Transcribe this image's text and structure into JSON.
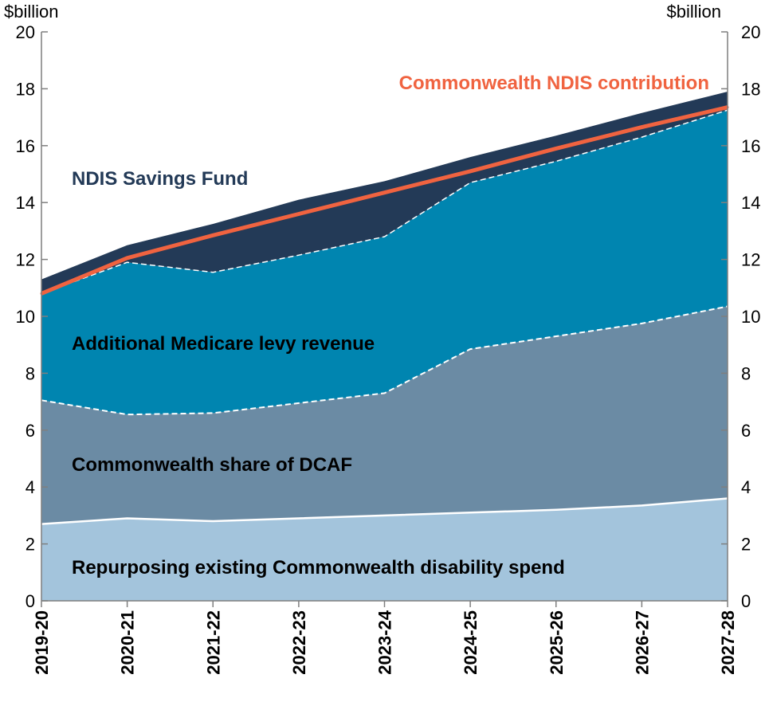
{
  "chart_data": {
    "type": "area",
    "y_unit_left": "$billion",
    "y_unit_right": "$billion",
    "categories": [
      "2019-20",
      "2020-21",
      "2021-22",
      "2022-23",
      "2023-24",
      "2024-25",
      "2025-26",
      "2026-27",
      "2027-28"
    ],
    "ylim": [
      0,
      20
    ],
    "yticks": [
      0,
      2,
      4,
      6,
      8,
      10,
      12,
      14,
      16,
      18,
      20
    ],
    "series": [
      {
        "name": "Repurposing existing Commonwealth disability spend",
        "values": [
          2.7,
          2.9,
          2.8,
          2.9,
          3.0,
          3.1,
          3.2,
          3.35,
          3.6
        ],
        "color": "#a3c4dc"
      },
      {
        "name": "Commonwealth share of DCAF",
        "values": [
          4.35,
          3.65,
          3.8,
          4.05,
          4.3,
          5.75,
          6.1,
          6.4,
          6.75
        ],
        "color": "#6b8ba4"
      },
      {
        "name": "Additional Medicare levy revenue",
        "values": [
          3.75,
          5.35,
          4.95,
          5.2,
          5.5,
          5.85,
          6.15,
          6.55,
          6.9
        ],
        "color": "#0085b0"
      },
      {
        "name": "NDIS Savings Fund",
        "values": [
          0.5,
          0.6,
          1.7,
          1.95,
          1.95,
          0.9,
          0.9,
          0.85,
          0.65
        ],
        "color": "#233a57"
      }
    ],
    "line": {
      "name": "Commonwealth NDIS contribution",
      "values": [
        10.8,
        12.05,
        12.85,
        13.6,
        14.35,
        15.1,
        15.9,
        16.65,
        17.35
      ],
      "color": "#f06340"
    }
  }
}
